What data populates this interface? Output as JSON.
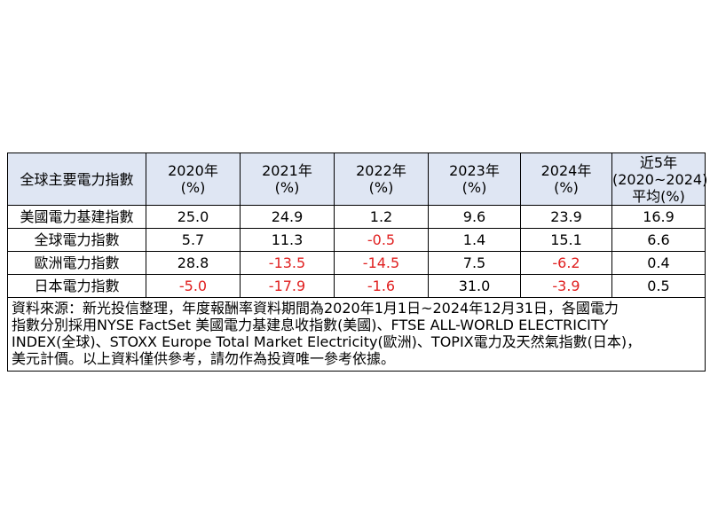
{
  "table": {
    "header": {
      "name_col": "全球主要電力指數",
      "years": [
        {
          "top": "2020年",
          "bottom": "(%)"
        },
        {
          "top": "2021年",
          "bottom": "(%)"
        },
        {
          "top": "2022年",
          "bottom": "(%)"
        },
        {
          "top": "2023年",
          "bottom": "(%)"
        },
        {
          "top": "2024年",
          "bottom": "(%)"
        }
      ],
      "avg": {
        "line1": "近5年",
        "line2": "(2020~2024)",
        "line3": "平均(%)"
      }
    },
    "rows": [
      {
        "name": "美國電力基建指數",
        "cells": [
          "25.0",
          "24.9",
          "1.2",
          "9.6",
          "23.9",
          "16.9"
        ]
      },
      {
        "name": "全球電力指數",
        "cells": [
          "5.7",
          "11.3",
          "-0.5",
          "1.4",
          "15.1",
          "6.6"
        ]
      },
      {
        "name": "歐洲電力指數",
        "cells": [
          "28.8",
          "-13.5",
          "-14.5",
          "7.5",
          "-6.2",
          "0.4"
        ]
      },
      {
        "name": "日本電力指數",
        "cells": [
          "-5.0",
          "-17.9",
          "-1.6",
          "31.0",
          "-3.9",
          "0.5"
        ]
      }
    ],
    "note_lines": [
      "資料來源：新光投信整理，年度報酬率資料期間為2020年1月1日~2024年12月31日，各國電力",
      "指數分別採用NYSE FactSet 美國電力基建息收指數(美國)、FTSE ALL-WORLD ELECTRICITY",
      "INDEX(全球)、STOXX Europe Total Market Electricity(歐洲)、TOPIX電力及天然氣指數(日本)，",
      "美元計價。以上資料僅供參考，請勿作為投資唯一參考依據。"
    ]
  },
  "colors": {
    "header_bg": "#dfe6f3",
    "negative": "#e02020",
    "border": "#000000"
  },
  "chart_data": {
    "type": "table",
    "columns": [
      "全球主要電力指數",
      "2020年 (%)",
      "2021年 (%)",
      "2022年 (%)",
      "2023年 (%)",
      "2024年 (%)",
      "近5年 (2020~2024) 平均(%)"
    ],
    "rows": [
      [
        "美國電力基建指數",
        25.0,
        24.9,
        1.2,
        9.6,
        23.9,
        16.9
      ],
      [
        "全球電力指數",
        5.7,
        11.3,
        -0.5,
        1.4,
        15.1,
        6.6
      ],
      [
        "歐洲電力指數",
        28.8,
        -13.5,
        -14.5,
        7.5,
        -6.2,
        0.4
      ],
      [
        "日本電力指數",
        -5.0,
        -17.9,
        -1.6,
        31.0,
        -3.9,
        0.5
      ]
    ]
  }
}
